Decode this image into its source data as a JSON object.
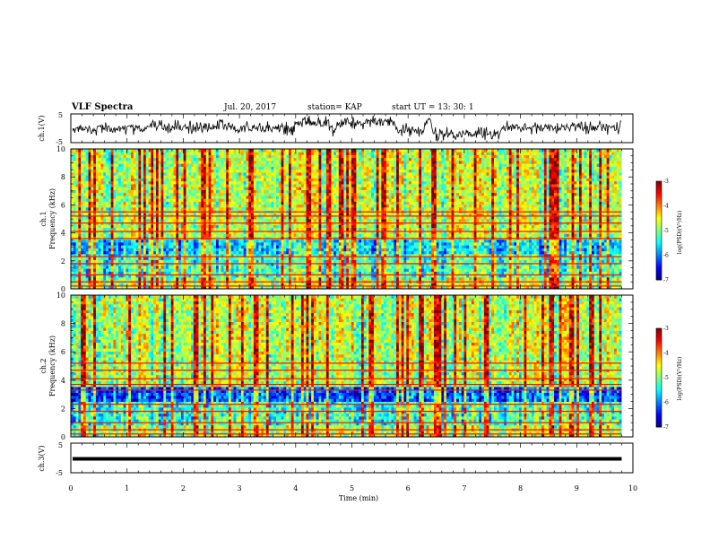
{
  "header": {
    "title": "VLF Spectra",
    "date": "Jul. 20, 2017",
    "station": "station= KAP",
    "start": "start UT =  13: 30: 1"
  },
  "chart_data": [
    {
      "type": "line",
      "name": "ch1-waveform",
      "ylabel": "ch.1(V)",
      "yticks": [
        "5",
        "-5"
      ],
      "ylim": [
        -5,
        5
      ],
      "xlim": [
        0,
        9.8
      ]
    },
    {
      "type": "heatmap",
      "name": "ch1-spectrogram",
      "ylabel": "ch.1\nFrequency (kHz)",
      "ylabel_lines": [
        "ch.1",
        "Frequency (kHz)"
      ],
      "yticks": [
        "0",
        "2",
        "4",
        "6",
        "8",
        "10"
      ],
      "ylim": [
        0,
        10
      ],
      "xlim": [
        0,
        9.8
      ],
      "colorbar": {
        "label": "log(PSD)(V²/Hz)",
        "ticks": [
          "-3",
          "-4",
          "-5",
          "-6",
          "-7"
        ],
        "range": [
          -7,
          -3
        ]
      },
      "bands_khz": [
        0.2,
        0.5,
        1.0,
        1.8,
        2.3,
        3.6,
        4.1,
        4.7,
        5.2,
        5.5
      ]
    },
    {
      "type": "heatmap",
      "name": "ch2-spectrogram",
      "ylabel": "ch.2\nFrequency (kHz)",
      "ylabel_lines": [
        "ch.2",
        "Frequency (kHz)"
      ],
      "yticks": [
        "0",
        "2",
        "4",
        "6",
        "8",
        "10"
      ],
      "ylim": [
        0,
        10
      ],
      "xlim": [
        0,
        9.8
      ],
      "colorbar": {
        "label": "log(PSD)(V²/Hz)",
        "ticks": [
          "-3",
          "-4",
          "-5",
          "-6",
          "-7"
        ],
        "range": [
          -7,
          -3
        ]
      },
      "bands_khz": [
        0.2,
        0.5,
        1.0,
        1.8,
        2.3,
        3.3,
        3.7,
        4.1,
        4.7,
        5.2
      ]
    },
    {
      "type": "line",
      "name": "ch3-waveform",
      "ylabel": "ch.3(V)",
      "yticks": [
        "5",
        "-5"
      ],
      "ylim": [
        -5,
        5
      ],
      "xlim": [
        0,
        9.8
      ],
      "constant_value": -0.3
    }
  ],
  "xaxis": {
    "label": "Time (min)",
    "ticks": [
      "0",
      "1",
      "2",
      "3",
      "4",
      "5",
      "6",
      "7",
      "8",
      "9",
      "10"
    ],
    "xlim": [
      0,
      10
    ]
  },
  "colors": {
    "jet": [
      "#00007f",
      "#0000ff",
      "#007fff",
      "#00ffff",
      "#7fff7f",
      "#ffff00",
      "#ff7f00",
      "#ff0000",
      "#7f0000"
    ]
  }
}
